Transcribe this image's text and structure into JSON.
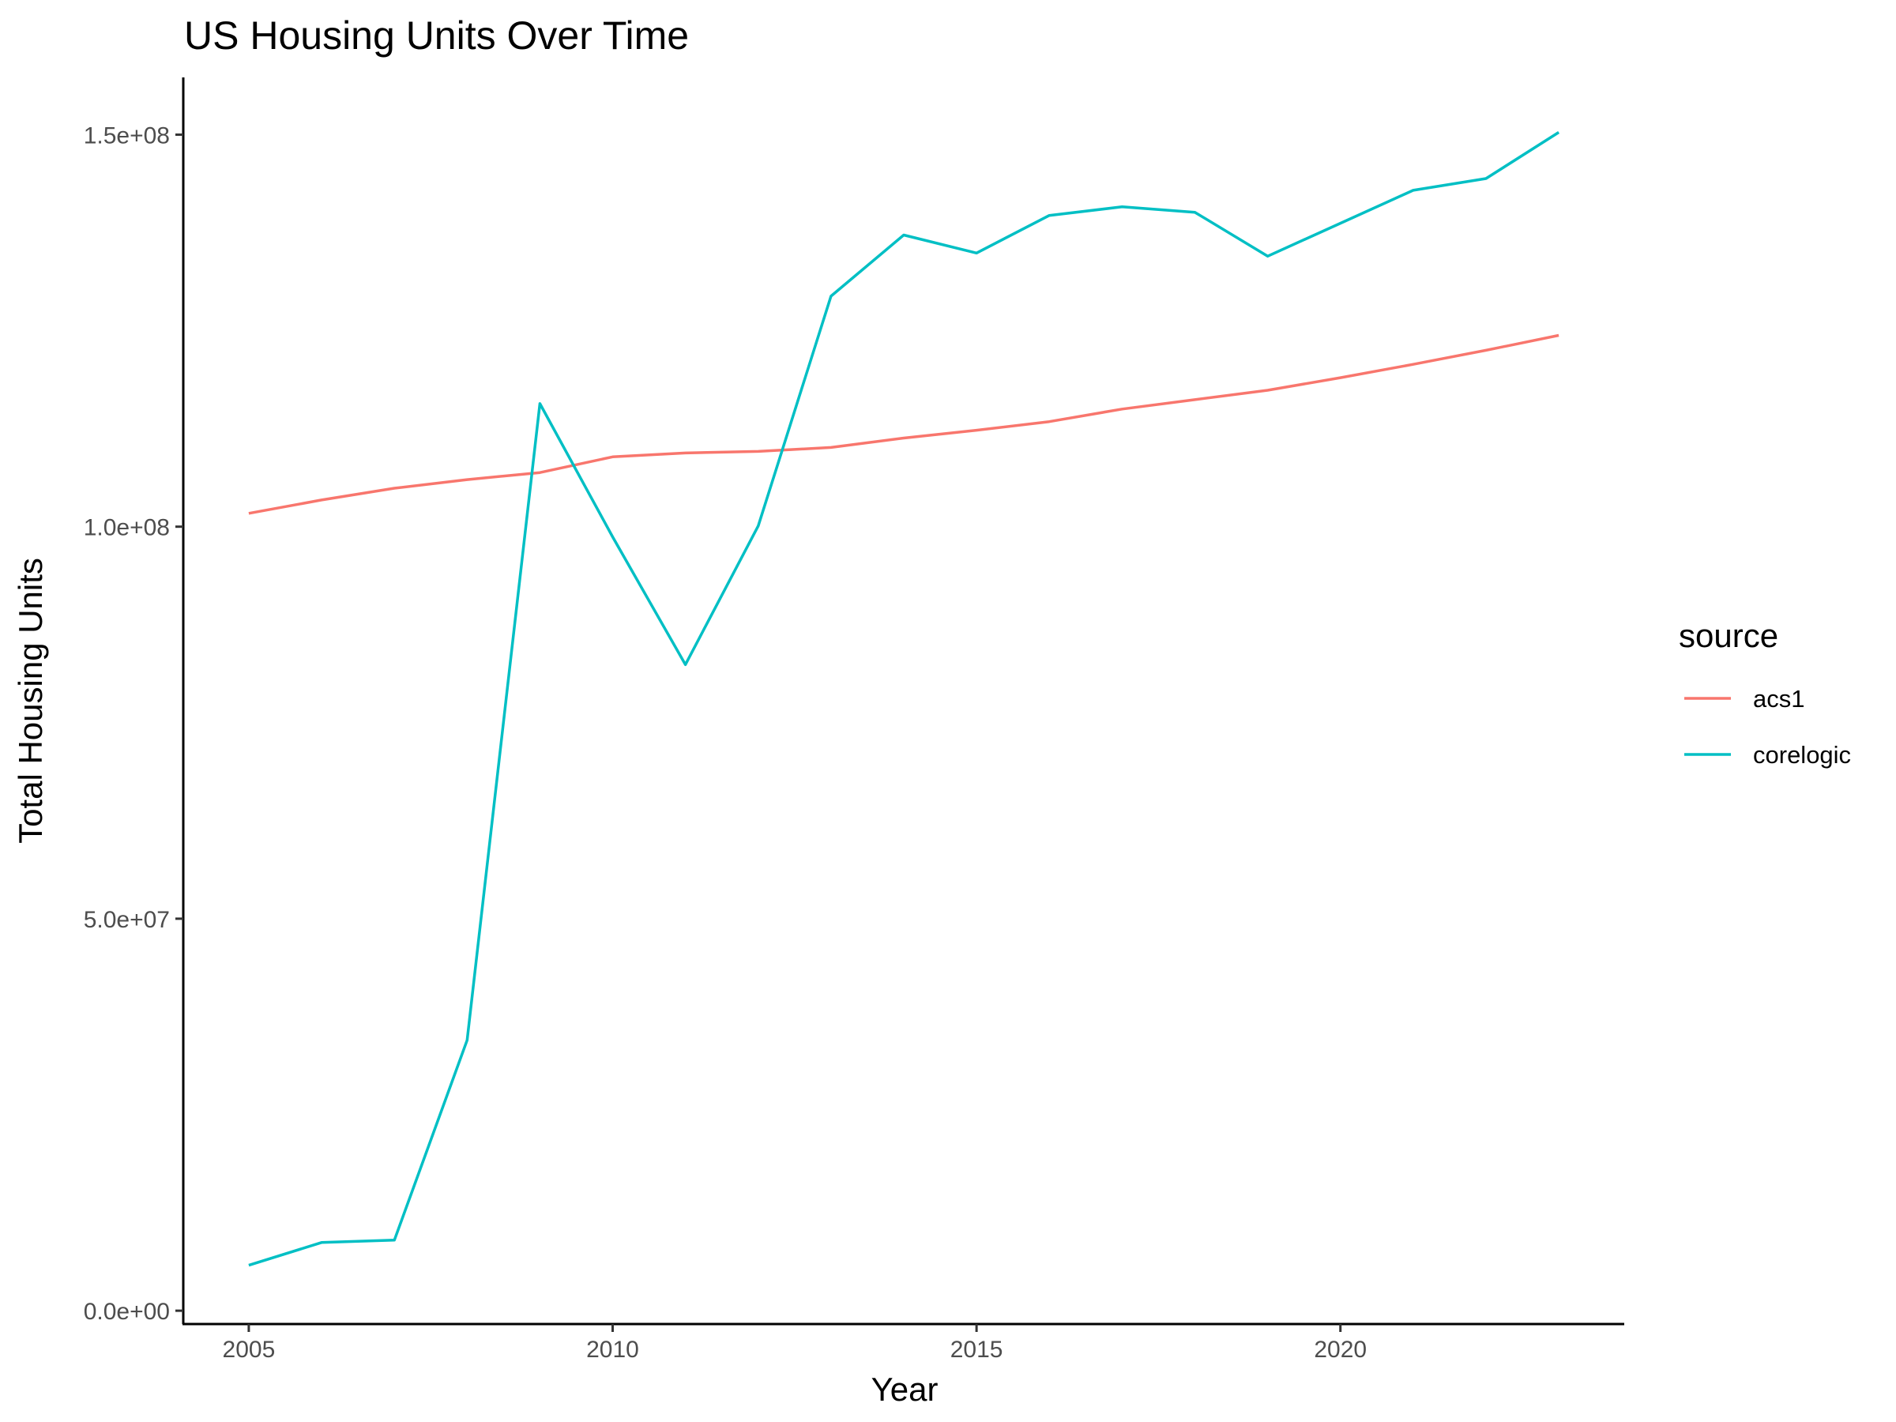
{
  "chart_data": {
    "type": "line",
    "title": "US Housing Units Over Time",
    "xlabel": "Year",
    "ylabel": "Total Housing Units",
    "xlim": [
      2004.1,
      2023.9
    ],
    "ylim": [
      -1700000,
      157300000
    ],
    "x_ticks": [
      2005,
      2010,
      2015,
      2020
    ],
    "x_tick_labels": [
      "2005",
      "2010",
      "2015",
      "2020"
    ],
    "y_ticks": [
      0,
      50000000,
      100000000,
      150000000
    ],
    "y_tick_labels": [
      "0.0e+00",
      "5.0e+07",
      "1.0e+08",
      "1.5e+08"
    ],
    "grid": false,
    "legend": {
      "title": "source",
      "position": "right"
    },
    "x": [
      2005,
      2006,
      2007,
      2008,
      2009,
      2010,
      2011,
      2012,
      2013,
      2014,
      2015,
      2016,
      2017,
      2018,
      2019,
      2020,
      2021,
      2022,
      2023
    ],
    "series": [
      {
        "name": "acs1",
        "color": "#F8766D",
        "values": [
          101700000,
          103400000,
          104900000,
          106000000,
          106900000,
          108900000,
          109400000,
          109600000,
          110100000,
          111300000,
          112300000,
          113400000,
          115000000,
          116200000,
          117400000,
          119000000,
          120700000,
          122500000,
          124400000
        ]
      },
      {
        "name": "corelogic",
        "color": "#00BFC4",
        "values": [
          5800000,
          8700000,
          9000000,
          34500000,
          115700000,
          98700000,
          82400000,
          100100000,
          129400000,
          137200000,
          134900000,
          139700000,
          140800000,
          140100000,
          134500000,
          138700000,
          142900000,
          144400000,
          150300000
        ]
      }
    ]
  }
}
